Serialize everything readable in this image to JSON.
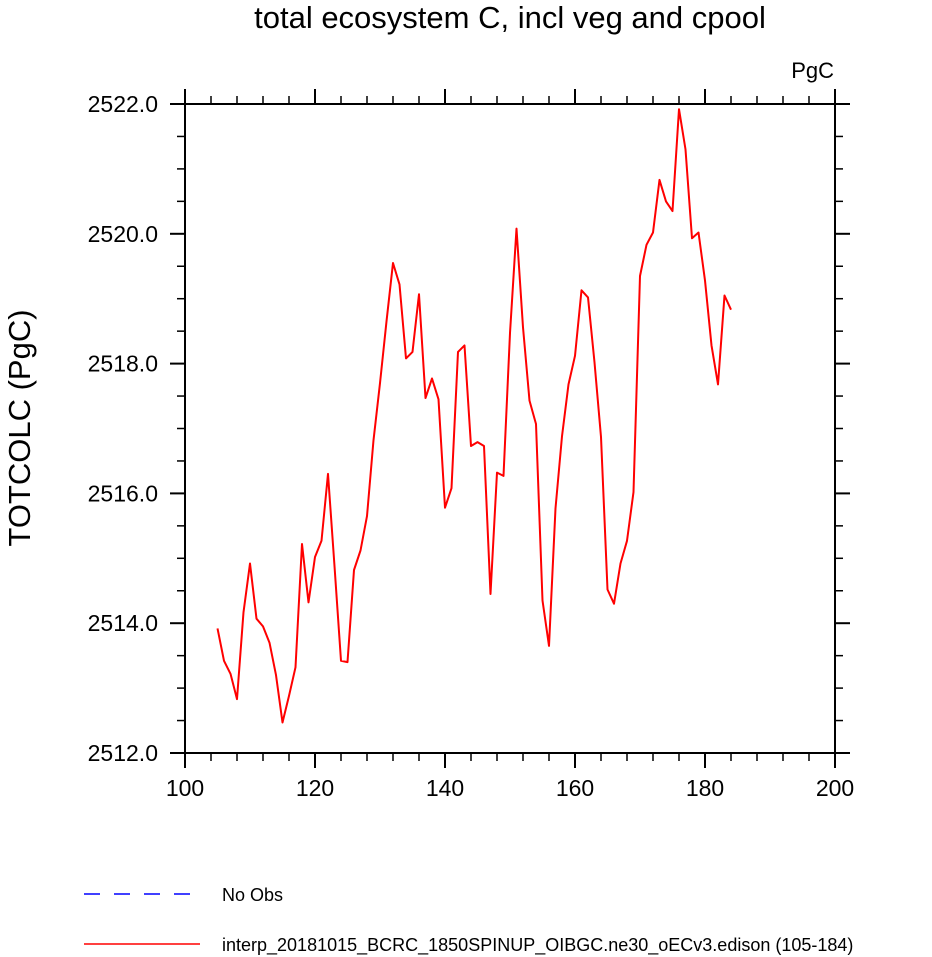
{
  "chart_data": {
    "type": "line",
    "title": "total ecosystem C, incl veg and cpool",
    "units": "PgC",
    "xlabel": "",
    "ylabel": "TOTCOLC  (PgC)",
    "xlim": [
      100,
      200
    ],
    "ylim": [
      2512.0,
      2522.0
    ],
    "x_ticks": [
      100,
      120,
      140,
      160,
      180,
      200
    ],
    "x_tick_labels": [
      "100",
      "120",
      "140",
      "160",
      "180",
      "200"
    ],
    "y_ticks": [
      2512.0,
      2514.0,
      2516.0,
      2518.0,
      2520.0,
      2522.0
    ],
    "y_tick_labels": [
      "2512.0",
      "2514.0",
      "2516.0",
      "2518.0",
      "2520.0",
      "2522.0"
    ],
    "x_minor_step": 4,
    "y_minor_step": 0.5,
    "series": [
      {
        "name": "interp_20181015_BCRC_1850SPINUP_OIBGC.ne30_oECv3.edison (105-184)",
        "color": "#ff0000",
        "style": "solid",
        "x": [
          105,
          106,
          107,
          108,
          109,
          110,
          111,
          112,
          113,
          114,
          115,
          116,
          117,
          118,
          119,
          120,
          121,
          122,
          123,
          124,
          125,
          126,
          127,
          128,
          129,
          130,
          131,
          132,
          133,
          134,
          135,
          136,
          137,
          138,
          139,
          140,
          141,
          142,
          143,
          144,
          145,
          146,
          147,
          148,
          149,
          150,
          151,
          152,
          153,
          154,
          155,
          156,
          157,
          158,
          159,
          160,
          161,
          162,
          163,
          164,
          165,
          166,
          167,
          168,
          169,
          170,
          171,
          172,
          173,
          174,
          175,
          176,
          177,
          178,
          179,
          180,
          181,
          182,
          183,
          184
        ],
        "y": [
          2513.92,
          2513.42,
          2513.22,
          2512.83,
          2514.17,
          2514.92,
          2514.07,
          2513.95,
          2513.7,
          2513.2,
          2512.47,
          2512.88,
          2513.32,
          2515.22,
          2514.32,
          2515.02,
          2515.27,
          2516.3,
          2514.88,
          2513.42,
          2513.4,
          2514.82,
          2515.12,
          2515.65,
          2516.82,
          2517.7,
          2518.65,
          2519.55,
          2519.22,
          2518.08,
          2518.18,
          2519.07,
          2517.47,
          2517.77,
          2517.45,
          2515.78,
          2516.08,
          2518.18,
          2518.28,
          2516.73,
          2516.79,
          2516.73,
          2514.45,
          2516.32,
          2516.27,
          2518.47,
          2520.08,
          2518.56,
          2517.43,
          2517.07,
          2514.35,
          2513.65,
          2515.77,
          2516.88,
          2517.68,
          2518.12,
          2519.13,
          2519.02,
          2518.02,
          2516.87,
          2514.52,
          2514.3,
          2514.92,
          2515.27,
          2516.02,
          2519.35,
          2519.83,
          2520.02,
          2520.83,
          2520.5,
          2520.35,
          2521.92,
          2521.3,
          2519.93,
          2520.02,
          2519.28,
          2518.28,
          2517.68,
          2519.05,
          2518.83
        ]
      },
      {
        "name": "No Obs",
        "color": "#0000ff",
        "style": "dashed",
        "x": [],
        "y": []
      }
    ],
    "legend_position": "bottom-left"
  }
}
